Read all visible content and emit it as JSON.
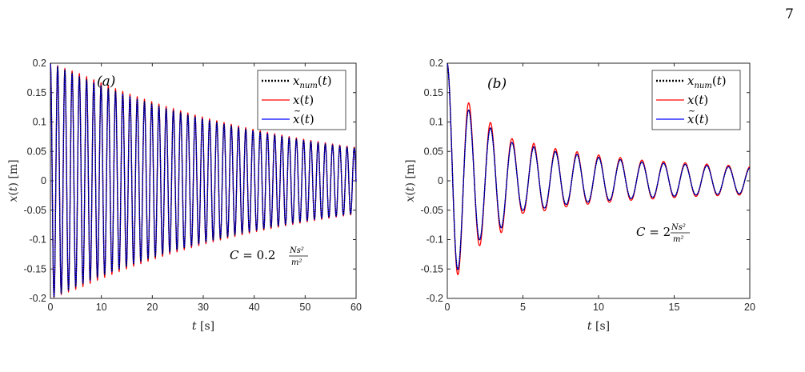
{
  "page": {
    "page_number": "7"
  },
  "colors": {
    "numeric": "#000000",
    "exact": "#ff0000",
    "approx": "#0000ff",
    "axis": "#262626"
  },
  "chart_data": [
    {
      "type": "line",
      "panel_label": "(a)",
      "xlabel": {
        "var": "t",
        "unit": "[s]"
      },
      "ylabel": {
        "var": "x(t)",
        "unit": "[m]"
      },
      "xlim": [
        0,
        60
      ],
      "ylim": [
        -0.2,
        0.2
      ],
      "xticks": [
        "0",
        "10",
        "20",
        "30",
        "40",
        "50",
        "60"
      ],
      "yticks": [
        "-0.2",
        "-0.15",
        "-0.1",
        "-0.05",
        "0",
        "0.05",
        "0.1",
        "0.15",
        "0.2"
      ],
      "grid": false,
      "legend_position": "top-right",
      "annotation": {
        "prefix": "C = 0.2",
        "num": "Ns²",
        "den": "m²"
      },
      "signal": {
        "amplitude_initial": 0.2,
        "period_s": 1.42,
        "envelope_end_value": 0.055,
        "exact_envelope_scale": 1.03
      },
      "series": [
        {
          "name": "x_num(t)",
          "role": "numeric",
          "style": "dotted"
        },
        {
          "name": "x(t)",
          "role": "exact",
          "style": "solid"
        },
        {
          "name": "x̃(t)",
          "role": "approx",
          "style": "solid"
        }
      ]
    },
    {
      "type": "line",
      "panel_label": "(b)",
      "xlabel": {
        "var": "t",
        "unit": "[s]"
      },
      "ylabel": {
        "var": "x(t)",
        "unit": "[m]"
      },
      "xlim": [
        0,
        20
      ],
      "ylim": [
        -0.2,
        0.2
      ],
      "xticks": [
        "0",
        "5",
        "10",
        "15",
        "20"
      ],
      "yticks": [
        "-0.2",
        "-0.15",
        "-0.1",
        "-0.05",
        "0",
        "0.05",
        "0.1",
        "0.15",
        "0.2"
      ],
      "grid": false,
      "legend_position": "top-right",
      "annotation": {
        "prefix": "C = 2",
        "num": "Ns²",
        "den": "m²"
      },
      "signal": {
        "amplitude_initial": 0.2,
        "period_s": 1.43,
        "peak_values": [
          0.2,
          -0.15,
          0.12,
          -0.1,
          0.09,
          -0.08,
          0.065,
          -0.05,
          0.058,
          -0.046,
          0.05,
          -0.04,
          0.045,
          -0.036,
          0.04,
          -0.033,
          0.036,
          -0.03,
          0.032,
          -0.028,
          0.03,
          -0.026,
          0.028,
          -0.024,
          0.026,
          -0.023,
          0.024,
          -0.022,
          0.022
        ],
        "exact_envelope_scale": 1.1
      },
      "series": [
        {
          "name": "x_num(t)",
          "role": "numeric",
          "style": "dotted"
        },
        {
          "name": "x(t)",
          "role": "exact",
          "style": "solid"
        },
        {
          "name": "x̃(t)",
          "role": "approx",
          "style": "solid"
        }
      ]
    }
  ]
}
